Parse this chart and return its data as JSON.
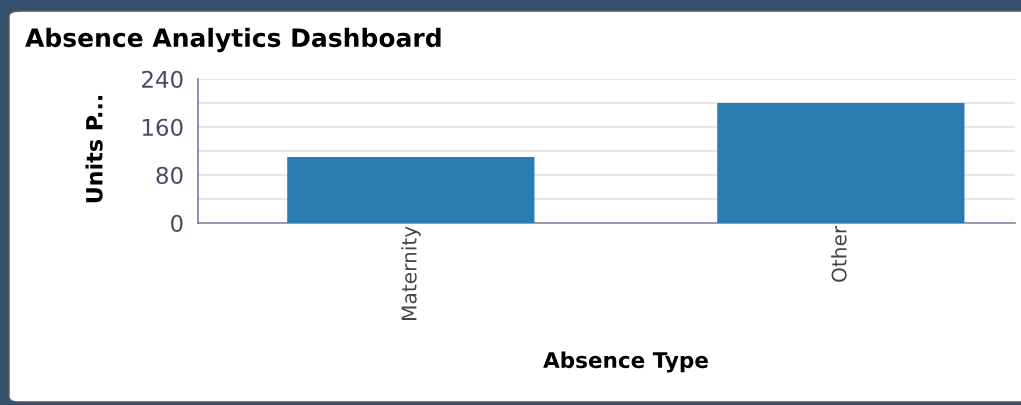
{
  "chart_data": {
    "type": "bar",
    "title": "Absence Analytics Dashboard",
    "xlabel": "Absence Type",
    "ylabel": "Units P...",
    "categories": [
      "Maternity",
      "Other"
    ],
    "values": [
      110,
      200
    ],
    "color": "#2a7db2",
    "ylim": [
      0,
      240
    ],
    "yticks": [
      0,
      {
        "value": 40,
        "label": null
      },
      80,
      {
        "value": 120,
        "label": null
      },
      160,
      {
        "value": 200,
        "label": null
      },
      240
    ],
    "grid": "y"
  }
}
